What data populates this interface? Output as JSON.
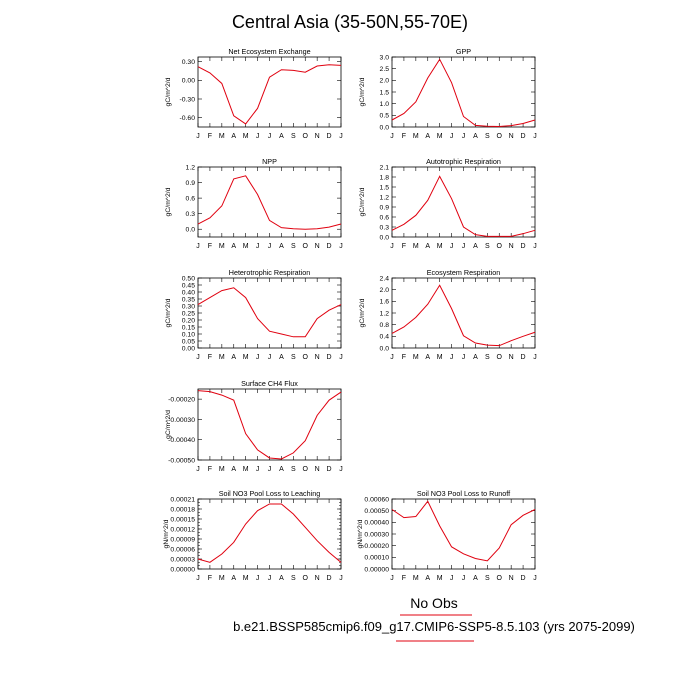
{
  "page": {
    "title": "Central Asia (35-50N,55-70E)",
    "legend_line1": "No Obs",
    "legend_line2": "b.e21.BSSP585cmip6.f09_g17.CMIP6-SSP5-8.5.103 (yrs 2075-2099)",
    "legend_color": "#e0000f"
  },
  "months": [
    "J",
    "F",
    "M",
    "A",
    "M",
    "J",
    "J",
    "A",
    "S",
    "O",
    "N",
    "D",
    "J"
  ],
  "chart_data": [
    {
      "type": "line",
      "title": "Net Ecosystem Exchange",
      "ylabel": "gC/m^2/d",
      "ylim": [
        -0.75,
        0.375
      ],
      "yticks": [
        0.3,
        0.0,
        -0.3,
        -0.6
      ],
      "ytick_labels": [
        "0.30",
        "0.00",
        "-0.30",
        "-0.60"
      ],
      "values": [
        0.22,
        0.12,
        -0.05,
        -0.57,
        -0.7,
        -0.45,
        0.05,
        0.17,
        0.16,
        0.13,
        0.23,
        0.25,
        0.24
      ],
      "color": "#e0000f"
    },
    {
      "type": "line",
      "title": "GPP",
      "ylabel": "gC/m^2/d",
      "ylim": [
        0.0,
        3.0
      ],
      "yticks": [
        0.0,
        0.5,
        1.0,
        1.5,
        2.0,
        2.5,
        3.0
      ],
      "ytick_labels": [
        "0.0",
        "0.5",
        "1.0",
        "1.5",
        "2.0",
        "2.5",
        "3.0"
      ],
      "values": [
        0.3,
        0.58,
        1.08,
        2.1,
        2.9,
        1.9,
        0.45,
        0.07,
        0.03,
        0.02,
        0.06,
        0.15,
        0.3
      ],
      "color": "#e0000f"
    },
    {
      "type": "line",
      "title": "NPP",
      "ylabel": "gC/m^2/d",
      "ylim": [
        -0.15,
        1.2
      ],
      "yticks": [
        0.0,
        0.3,
        0.6,
        0.9,
        1.2
      ],
      "ytick_labels": [
        "0.0",
        "0.3",
        "0.6",
        "0.9",
        "1.2"
      ],
      "values": [
        0.1,
        0.22,
        0.45,
        0.97,
        1.03,
        0.67,
        0.17,
        0.03,
        0.01,
        0.0,
        0.01,
        0.04,
        0.1
      ],
      "color": "#e0000f"
    },
    {
      "type": "line",
      "title": "Autotrophic Respiration",
      "ylabel": "gC/m^2/d",
      "ylim": [
        0.0,
        2.1
      ],
      "yticks": [
        0.0,
        0.3,
        0.6,
        0.9,
        1.2,
        1.5,
        1.8,
        2.1
      ],
      "ytick_labels": [
        "0.0",
        "0.3",
        "0.6",
        "0.9",
        "1.2",
        "1.5",
        "1.8",
        "2.1"
      ],
      "values": [
        0.2,
        0.38,
        0.65,
        1.1,
        1.82,
        1.15,
        0.3,
        0.07,
        0.02,
        0.02,
        0.02,
        0.1,
        0.2
      ],
      "color": "#e0000f"
    },
    {
      "type": "line",
      "title": "Heterotrophic Respiration",
      "ylabel": "gC/m^2/d",
      "ylim": [
        0.0,
        0.5
      ],
      "yticks": [
        0.0,
        0.05,
        0.1,
        0.15,
        0.2,
        0.25,
        0.3,
        0.35,
        0.4,
        0.45,
        0.5
      ],
      "ytick_labels": [
        "0.00",
        "0.05",
        "0.10",
        "0.15",
        "0.20",
        "0.25",
        "0.30",
        "0.35",
        "0.40",
        "0.45",
        "0.50"
      ],
      "values": [
        0.31,
        0.36,
        0.41,
        0.43,
        0.36,
        0.21,
        0.12,
        0.1,
        0.08,
        0.08,
        0.21,
        0.27,
        0.31
      ],
      "color": "#e0000f"
    },
    {
      "type": "line",
      "title": "Ecosystem Respiration",
      "ylabel": "gC/m^2/d",
      "ylim": [
        0.0,
        2.4
      ],
      "yticks": [
        0.0,
        0.4,
        0.8,
        1.2,
        1.6,
        2.0,
        2.4
      ],
      "ytick_labels": [
        "0.0",
        "0.4",
        "0.8",
        "1.2",
        "1.6",
        "2.0",
        "2.4"
      ],
      "values": [
        0.5,
        0.72,
        1.05,
        1.5,
        2.15,
        1.35,
        0.42,
        0.17,
        0.1,
        0.08,
        0.25,
        0.4,
        0.54
      ],
      "color": "#e0000f"
    },
    {
      "type": "line",
      "title": "Surface CH4 Flux",
      "ylabel": "gC/m^2/d",
      "ylim": [
        -0.0005,
        -0.00015
      ],
      "yticks": [
        -0.0002,
        -0.0003,
        -0.0004,
        -0.0005
      ],
      "ytick_labels": [
        "-0.00020",
        "-0.00030",
        "-0.00040",
        "-0.00050"
      ],
      "values": [
        -0.000158,
        -0.000163,
        -0.00018,
        -0.000205,
        -0.00037,
        -0.00045,
        -0.00049,
        -0.000495,
        -0.000465,
        -0.000405,
        -0.00028,
        -0.000205,
        -0.000165
      ],
      "color": "#e0000f"
    },
    {
      "type": "line",
      "title": "Soil NO3 Pool Loss to Leaching",
      "ylabel": "gN/m^2/d",
      "ylim": [
        0.0,
        0.00021
      ],
      "yticks": [
        0.0,
        3e-05,
        6e-05,
        9e-05,
        0.00012,
        0.00015,
        0.00018,
        0.00021
      ],
      "ytick_labels": [
        "0.00000",
        "0.00003",
        "0.00006",
        "0.00009",
        "0.00012",
        "0.00015",
        "0.00018",
        "0.00021"
      ],
      "minor_step": 1e-05,
      "values": [
        3e-05,
        2e-05,
        4.5e-05,
        8e-05,
        0.000135,
        0.000175,
        0.000195,
        0.000195,
        0.000165,
        0.000125,
        8.5e-05,
        5e-05,
        2e-05
      ],
      "color": "#e0000f"
    },
    {
      "type": "line",
      "title": "Soil NO3 Pool Loss to Runoff",
      "ylabel": "gN/m^2/d",
      "ylim": [
        0.0,
        0.0006
      ],
      "yticks": [
        0.0,
        0.0001,
        0.0002,
        0.0003,
        0.0004,
        0.0005,
        0.0006
      ],
      "ytick_labels": [
        "0.00000",
        "0.00010",
        "0.00020",
        "0.00030",
        "0.00040",
        "0.00050",
        "0.00060"
      ],
      "values": [
        0.00051,
        0.00044,
        0.00045,
        0.00058,
        0.00037,
        0.00019,
        0.00013,
        9e-05,
        7e-05,
        0.00018,
        0.00038,
        0.00046,
        0.00051
      ],
      "color": "#e0000f"
    }
  ]
}
